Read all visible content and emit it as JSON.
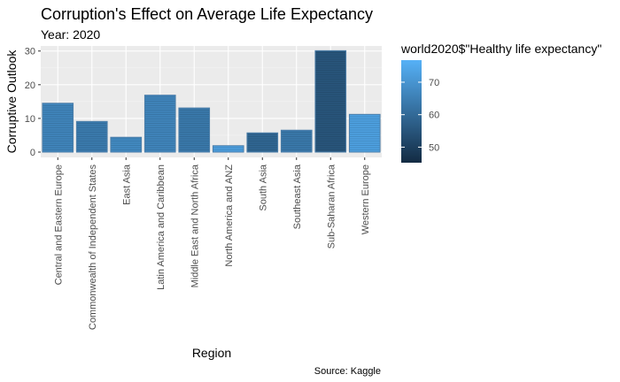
{
  "chart_data": {
    "type": "bar",
    "title": "Corruption's Effect on Average Life Expectancy",
    "subtitle": "Year: 2020",
    "caption": "Source: Kaggle",
    "xlabel": "Region",
    "ylabel": "Corruptive Outlook",
    "ylim": [
      0,
      31.5
    ],
    "yticks": [
      0,
      10,
      20,
      30
    ],
    "grid": true,
    "legend_position": "right",
    "categories": [
      "Central and Eastern Europe",
      "Commonwealth of Independent States",
      "East Asia",
      "Latin America and Caribbean",
      "Middle East and North Africa",
      "North America and ANZ",
      "South Asia",
      "Southeast Asia",
      "Sub-Saharan Africa",
      "Western Europe"
    ],
    "values": [
      14.5,
      9.1,
      4.4,
      16.9,
      13.1,
      1.9,
      5.7,
      6.5,
      30.1,
      11.2
    ],
    "fill_values": [
      66.5,
      64.0,
      67.5,
      66.5,
      63.5,
      72.5,
      59.0,
      63.5,
      55.0,
      73.0
    ],
    "legend": {
      "title": "world2020$\"Healthy life expectancy\"",
      "ticks": [
        50,
        60,
        70
      ],
      "range": [
        45.2,
        76.8
      ],
      "color_low": "#132b43",
      "color_high": "#56b1f7"
    },
    "colors": {
      "panel_bg": "#ebebeb",
      "grid_major": "#ffffff",
      "grid_minor": "#f5f5f5",
      "bar_outline": "#4d7ea8"
    }
  }
}
